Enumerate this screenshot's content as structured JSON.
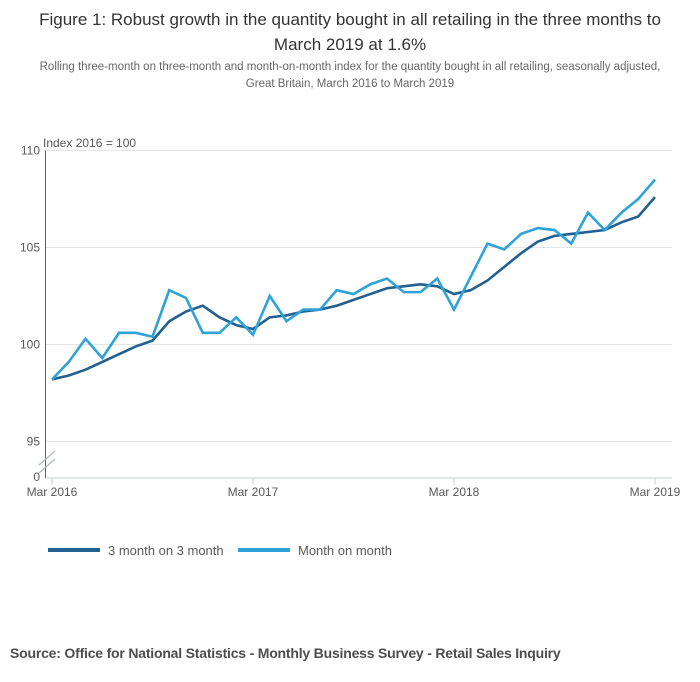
{
  "title": "Figure 1: Robust growth in the quantity bought in all retailing in the three months to March 2019 at 1.6%",
  "subtitle": "Rolling three-month on three-month and month-on-month index for the quantity bought in all retailing, seasonally adjusted, Great Britain, March 2016 to March 2019",
  "source": "Source: Office for National Statistics - Monthly Business Survey - Retail Sales Inquiry",
  "colors": {
    "dark_blue": "#21608f",
    "light_blue": "#2ea3d9",
    "gridline": "#e3e6e8",
    "axis_light": "#c3cdd5",
    "axis_dark": "#606060",
    "text_gray": "#595959"
  },
  "legend": [
    {
      "label": "3 month on 3 month",
      "color": "#21608f"
    },
    {
      "label": "Month on month",
      "color": "#2ea3d9"
    }
  ],
  "chart_data": {
    "type": "line",
    "title": "Figure 1: Robust growth in the quantity bought in all retailing in the three months to March 2019 at 1.6%",
    "ylabel": "Index 2016 = 100",
    "xlabel": "",
    "ylim_display": [
      95,
      110
    ],
    "y_break_to_zero": true,
    "y_zero_label": "0",
    "y_ticks": [
      110,
      105,
      100,
      95
    ],
    "x_tick_labels": [
      "Mar 2016",
      "Mar 2017",
      "Mar 2018",
      "Mar 2019"
    ],
    "x_tick_month_index": [
      0,
      12,
      24,
      36
    ],
    "grid": "horizontal",
    "legend_position": "bottom-left",
    "months": [
      "Mar 2016",
      "Apr 2016",
      "May 2016",
      "Jun 2016",
      "Jul 2016",
      "Aug 2016",
      "Sep 2016",
      "Oct 2016",
      "Nov 2016",
      "Dec 2016",
      "Jan 2017",
      "Feb 2017",
      "Mar 2017",
      "Apr 2017",
      "May 2017",
      "Jun 2017",
      "Jul 2017",
      "Aug 2017",
      "Sep 2017",
      "Oct 2017",
      "Nov 2017",
      "Dec 2017",
      "Jan 2018",
      "Feb 2018",
      "Mar 2018",
      "Apr 2018",
      "May 2018",
      "Jun 2018",
      "Jul 2018",
      "Aug 2018",
      "Sep 2018",
      "Oct 2018",
      "Nov 2018",
      "Dec 2018",
      "Jan 2019",
      "Feb 2019",
      "Mar 2019"
    ],
    "series": [
      {
        "name": "3 month on 3 month",
        "color": "#21608f",
        "values": [
          98.2,
          98.4,
          98.7,
          99.1,
          99.5,
          99.9,
          100.2,
          101.2,
          101.7,
          102.0,
          101.4,
          101.0,
          100.8,
          101.4,
          101.5,
          101.7,
          101.8,
          102.0,
          102.3,
          102.6,
          102.9,
          103.0,
          103.1,
          103.0,
          102.6,
          102.8,
          103.3,
          104.0,
          104.7,
          105.3,
          105.6,
          105.7,
          105.8,
          105.9,
          106.3,
          106.6,
          107.6
        ]
      },
      {
        "name": "Month on month",
        "color": "#2ea3d9",
        "values": [
          98.2,
          99.1,
          100.3,
          99.3,
          100.6,
          100.6,
          100.4,
          102.8,
          102.4,
          100.6,
          100.6,
          101.4,
          100.5,
          102.5,
          101.2,
          101.8,
          101.8,
          102.8,
          102.6,
          103.1,
          103.4,
          102.7,
          102.7,
          103.4,
          101.8,
          103.5,
          105.2,
          104.9,
          105.7,
          106.0,
          105.9,
          105.2,
          106.8,
          105.9,
          106.8,
          107.5,
          108.5
        ]
      }
    ]
  }
}
